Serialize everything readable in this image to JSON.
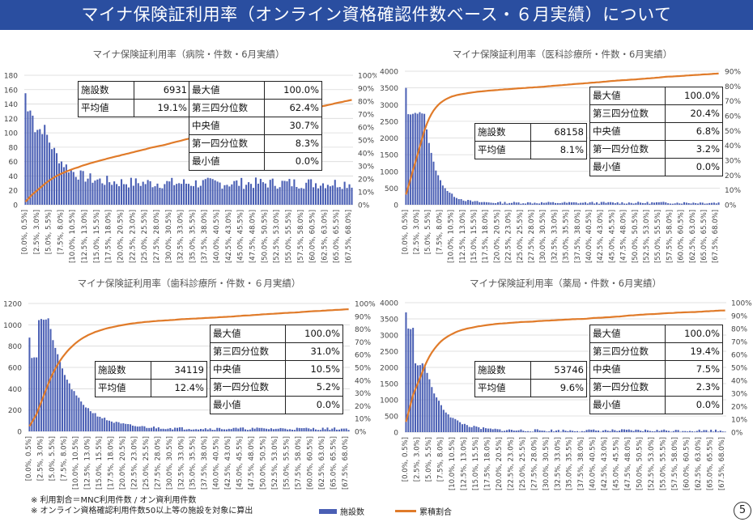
{
  "header": {
    "title": "マイナ保険証利用率（オンライン資格確認件数ベース・６月実績）について"
  },
  "footnotes": [
    "※ 利用割合＝MNC利用件数 / オン資利用件数",
    "※ オンライン資格確認利用件数50以上等の施設を対象に算出"
  ],
  "legend": {
    "bar_label": "施設数",
    "line_label": "累積割合"
  },
  "page_number": "5",
  "colors": {
    "header_bg": "#2a4ea0",
    "bar": "#4a5fb4",
    "line": "#e07b2a",
    "grid": "#d9d9d9"
  },
  "chart_data": [
    {
      "type": "bar+line",
      "title": "マイナ保険証利用率（病院・件数・6月実績）",
      "y_left_ticks": [
        "0",
        "20",
        "40",
        "60",
        "80",
        "100",
        "120",
        "140",
        "160",
        "180"
      ],
      "y_left_max": 180,
      "y_right_ticks": [
        "0%",
        "10%",
        "20%",
        "30%",
        "40%",
        "50%",
        "60%",
        "70%",
        "80%",
        "90%",
        "100%"
      ],
      "x_tick_labels": [
        "[0.0%, 0.5%]",
        "[2.5%, 3.0%]",
        "[5.0%, 5.5%]",
        "[7.5%, 8.0%]",
        "[10.0%, 10.5%]",
        "[12.5%, 13.0%]",
        "[15.0%, 15.5%]",
        "[17.5%, 18.0%]",
        "[20.0%, 20.5%]",
        "[22.5%, 23.0%]",
        "[25.0%, 25.5%]",
        "[27.5%, 28.0%]",
        "[30.0%, 30.5%]",
        "[32.5%, 33.0%]",
        "[35.0%, 35.5%]",
        "[37.5%, 38.0%]",
        "[40.0%, 40.5%]",
        "[42.5%, 43.0%]",
        "[45.0%, 45.5%]",
        "[47.5%, 48.0%]",
        "[50.0%, 50.5%]",
        "[52.5%, 53.0%]",
        "[55.0%, 55.5%]",
        "[57.5%, 58.0%]",
        "[60.0%, 60.5%]",
        "[62.5%, 63.0%]",
        "[65.0%, 65.5%]",
        "[67.5%, 68.0%]"
      ],
      "profile": {
        "peak": 155,
        "second": 130,
        "shoulder": 105,
        "decay": 0.13,
        "floor": 30,
        "noise": 8
      },
      "cumulative_share_at_end": 0.81,
      "stats_a": [
        {
          "label": "施設数",
          "value": "6931"
        },
        {
          "label": "平均値",
          "value": "19.1%"
        }
      ],
      "stats_b": [
        {
          "label": "最大値",
          "value": "100.0%"
        },
        {
          "label": "第三四分位数",
          "value": "62.4%"
        },
        {
          "label": "中央値",
          "value": "30.7%"
        },
        {
          "label": "第一四分位数",
          "value": "8.3%"
        },
        {
          "label": "最小値",
          "value": "0.0%"
        }
      ]
    },
    {
      "type": "bar+line",
      "title": "マイナ保険証利用率（医科診療所・件数・6月実績）",
      "y_left_ticks": [
        "0",
        "500",
        "1000",
        "1500",
        "2000",
        "2500",
        "3000",
        "3500",
        "4000"
      ],
      "y_left_max": 4000,
      "y_right_ticks": [
        "0%",
        "10%",
        "20%",
        "30%",
        "40%",
        "50%",
        "60%",
        "70%",
        "80%",
        "90%"
      ],
      "x_tick_labels": [
        "[0.0%, 0.5%]",
        "[2.5%, 3.0%]",
        "[5.0%, 5.5%]",
        "[7.5%, 8.0%]",
        "[10.0%, 10.5%]",
        "[12.5%, 13.0%]",
        "[15.0%, 15.5%]",
        "[17.5%, 18.0%]",
        "[20.0%, 20.5%]",
        "[22.5%, 23.0%]",
        "[25.0%, 25.5%]",
        "[27.5%, 28.0%]",
        "[30.0%, 30.5%]",
        "[32.5%, 33.0%]",
        "[35.0%, 35.5%]",
        "[37.5%, 38.0%]",
        "[40.0%, 40.5%]",
        "[42.5%, 43.0%]",
        "[45.0%, 45.5%]",
        "[47.5%, 48.0%]",
        "[50.0%, 50.5%]",
        "[52.5%, 53.0%]",
        "[55.0%, 55.5%]",
        "[57.5%, 58.0%]",
        "[60.0%, 60.5%]",
        "[62.5%, 63.0%]",
        "[65.0%, 65.5%]",
        "[67.5%, 68.0%]"
      ],
      "profile": {
        "peak": 3500,
        "second": 2700,
        "shoulder": 2750,
        "decay": 0.2,
        "floor": 60,
        "noise": 30
      },
      "cumulative_share_at_end": 0.885,
      "stats_a": [
        {
          "label": "施設数",
          "value": "68158"
        },
        {
          "label": "平均値",
          "value": "8.1%"
        }
      ],
      "stats_b": [
        {
          "label": "最大値",
          "value": "100.0%"
        },
        {
          "label": "第三四分位数",
          "value": "20.4%"
        },
        {
          "label": "中央値",
          "value": "6.8%"
        },
        {
          "label": "第一四分位数",
          "value": "3.2%"
        },
        {
          "label": "最小値",
          "value": "0.0%"
        }
      ]
    },
    {
      "type": "bar+line",
      "title": "マイナ保険証利用率（歯科診療所・件数・６月実績）",
      "y_left_ticks": [
        "0",
        "200",
        "400",
        "600",
        "800",
        "1000",
        "1200"
      ],
      "y_left_max": 1200,
      "y_right_ticks": [
        "0%",
        "10%",
        "20%",
        "30%",
        "40%",
        "50%",
        "60%",
        "70%",
        "80%",
        "90%",
        "100%"
      ],
      "x_tick_labels": [
        "[0.0%, 0.5%]",
        "[2.5%, 3.0%]",
        "[5.0%, 5.5%]",
        "[7.5%, 8.0%]",
        "[10.0%, 10.5%]",
        "[12.5%, 13.0%]",
        "[15.0%, 15.5%]",
        "[17.5%, 18.0%]",
        "[20.0%, 20.5%]",
        "[22.5%, 23.0%]",
        "[25.0%, 25.5%]",
        "[27.5%, 28.0%]",
        "[30.0%, 30.5%]",
        "[32.5%, 33.0%]",
        "[35.0%, 35.5%]",
        "[37.5%, 38.0%]",
        "[40.0%, 40.5%]",
        "[42.5%, 43.0%]",
        "[45.0%, 45.5%]",
        "[47.5%, 48.0%]",
        "[50.0%, 50.5%]",
        "[52.5%, 53.0%]",
        "[55.0%, 55.5%]",
        "[57.5%, 58.0%]",
        "[60.0%, 60.5%]",
        "[62.5%, 63.0%]",
        "[65.0%, 65.5%]",
        "[67.5%, 68.0%]"
      ],
      "profile": {
        "peak": 880,
        "second": 700,
        "shoulder": 1050,
        "decay": 0.1,
        "floor": 25,
        "noise": 12
      },
      "cumulative_share_at_end": 0.955,
      "stats_a": [
        {
          "label": "施設数",
          "value": "34119"
        },
        {
          "label": "平均値",
          "value": "12.4%"
        }
      ],
      "stats_b": [
        {
          "label": "最大値",
          "value": "100.0%"
        },
        {
          "label": "第三四分位数",
          "value": "31.0%"
        },
        {
          "label": "中央値",
          "value": "10.5%"
        },
        {
          "label": "第一四分位数",
          "value": "5.2%"
        },
        {
          "label": "最小値",
          "value": "0.0%"
        }
      ]
    },
    {
      "type": "bar+line",
      "title": "マイナ保険証利用率（薬局・件数・6月実績）",
      "y_left_ticks": [
        "0",
        "500",
        "1000",
        "1500",
        "2000",
        "2500",
        "3000",
        "3500",
        "4000"
      ],
      "y_left_max": 4000,
      "y_right_ticks": [
        "0%",
        "10%",
        "20%",
        "30%",
        "40%",
        "50%",
        "60%",
        "70%",
        "80%",
        "90%",
        "100%"
      ],
      "x_tick_labels": [
        "[0.0%, 0.5%]",
        "[2.5%, 3.0%]",
        "[5.0%, 5.5%]",
        "[7.5%, 8.0%]",
        "[10.0%, 10.5%]",
        "[12.5%, 13.0%]",
        "[15.0%, 15.5%]",
        "[17.5%, 18.0%]",
        "[20.0%, 20.5%]",
        "[22.5%, 23.0%]",
        "[25.0%, 25.5%]",
        "[27.5%, 28.0%]",
        "[30.0%, 30.5%]",
        "[32.5%, 33.0%]",
        "[35.0%, 35.5%]",
        "[37.5%, 38.0%]",
        "[40.0%, 40.5%]",
        "[42.5%, 43.0%]",
        "[45.0%, 45.5%]",
        "[47.5%, 48.0%]",
        "[50.0%, 50.5%]",
        "[52.5%, 53.0%]",
        "[55.0%, 55.5%]",
        "[57.5%, 58.0%]",
        "[60.0%, 60.5%]",
        "[62.5%, 63.0%]",
        "[65.0%, 65.5%]",
        "[67.5%, 68.0%]"
      ],
      "profile": {
        "peak": 3700,
        "second": 3200,
        "shoulder": 2100,
        "decay": 0.14,
        "floor": 50,
        "noise": 40
      },
      "cumulative_share_at_end": 0.94,
      "stats_a": [
        {
          "label": "施設数",
          "value": "53746"
        },
        {
          "label": "平均値",
          "value": "9.6%"
        }
      ],
      "stats_b": [
        {
          "label": "最大値",
          "value": "100.0%"
        },
        {
          "label": "第三四分位数",
          "value": "19.4%"
        },
        {
          "label": "中央値",
          "value": "7.5%"
        },
        {
          "label": "第一四分位数",
          "value": "2.3%"
        },
        {
          "label": "最小値",
          "value": "0.0%"
        }
      ]
    }
  ]
}
